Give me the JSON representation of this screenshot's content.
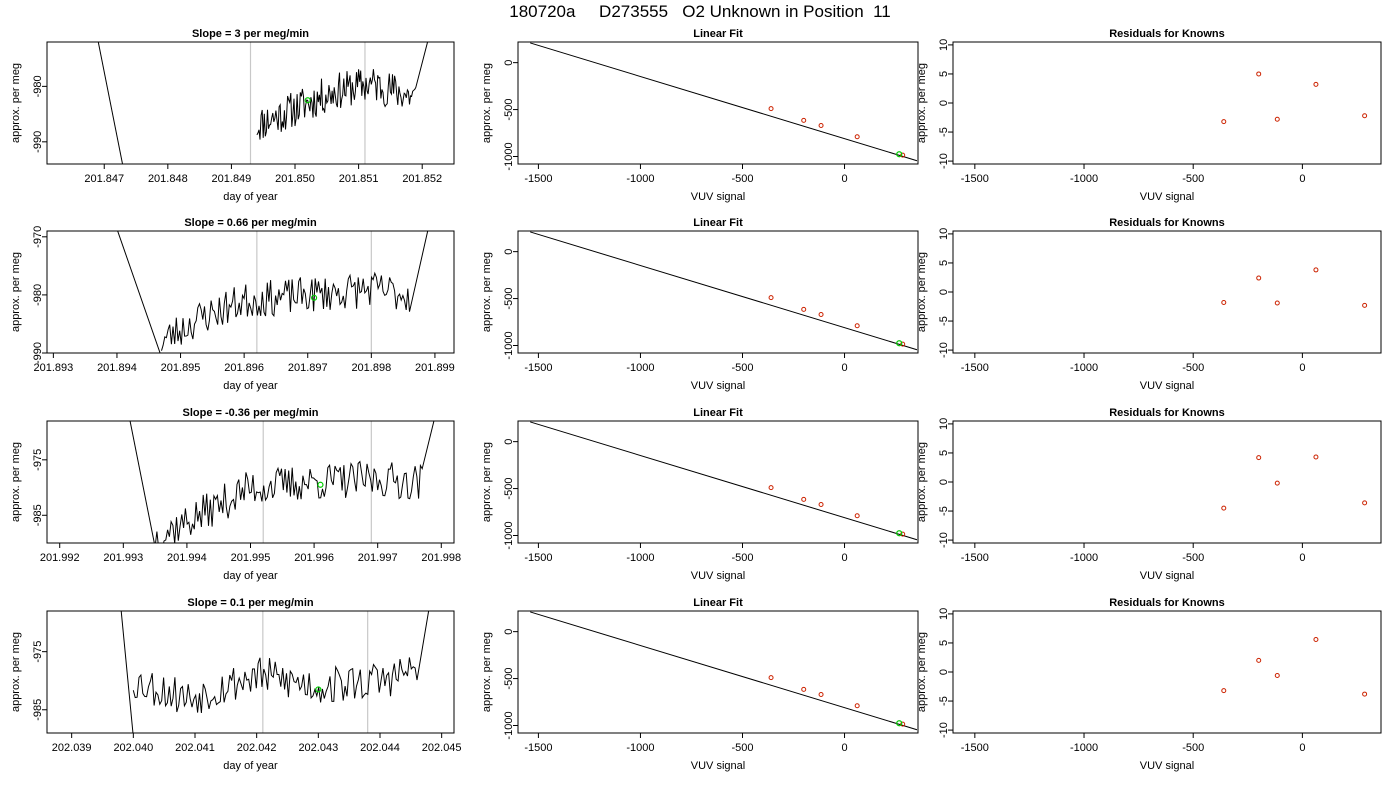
{
  "figure": {
    "suptitle": "180720a     D273555   O2 Unknown in Position  11"
  },
  "colors": {
    "trace": "#000000",
    "guide_line": "#c8c8c8",
    "unknown_marker": "#00cc00",
    "known_marker": "#cc2200",
    "fit_line": "#000000"
  },
  "chart_data": [
    {
      "type": "line",
      "title": "Slope =  3  per meg/min",
      "xlabel": "day of year",
      "ylabel": "approx. per meg",
      "xticks": [
        "201.847",
        "201.848",
        "201.849",
        "201.850",
        "201.851",
        "201.852"
      ],
      "xtick_values": [
        201.847,
        201.848,
        201.849,
        201.85,
        201.851,
        201.852
      ],
      "yticks": [
        "-990",
        "-980"
      ],
      "ytick_values": [
        -990,
        -980
      ],
      "xlim": [
        201.8461,
        201.8525
      ],
      "ylim": [
        -994,
        -972
      ],
      "vlines": [
        201.8493,
        201.8511
      ],
      "trace": {
        "x_start": 201.8494,
        "x_end": 201.8519,
        "noise": 1.6,
        "seed": 11,
        "anchors": [
          [
            201.8494,
            -987
          ],
          [
            201.85,
            -984
          ],
          [
            201.8506,
            -981
          ],
          [
            201.8512,
            -979.5
          ],
          [
            201.8519,
            -982
          ]
        ],
        "drop_x": [
          201.8469,
          201.8473
        ],
        "rise_end": 201.8521
      },
      "unknown_point": [
        201.8502,
        -982.5
      ]
    },
    {
      "type": "scatter",
      "title": "Linear Fit",
      "xlabel": "VUV signal",
      "ylabel": "approx. per meg",
      "xticks": [
        "-1500",
        "-1000",
        "-500",
        "0"
      ],
      "xtick_values": [
        -1500,
        -1000,
        -500,
        0
      ],
      "yticks": [
        "-1000",
        "-500",
        "0"
      ],
      "ytick_values": [
        -1000,
        -500,
        0
      ],
      "xlim": [
        -1600,
        360
      ],
      "ylim": [
        -1080,
        220
      ],
      "fit_line": [
        [
          -1540,
          210
        ],
        [
          355,
          -1045
        ]
      ],
      "knowns": [
        [
          -360,
          -490
        ],
        [
          -200,
          -615
        ],
        [
          -115,
          -670
        ],
        [
          62,
          -790
        ],
        [
          285,
          -985
        ]
      ],
      "unknown": [
        268,
        -976
      ]
    },
    {
      "type": "scatter",
      "title": "Residuals for Knowns",
      "xlabel": "VUV signal",
      "ylabel": "approx. per meg",
      "xticks": [
        "-1500",
        "-1000",
        "-500",
        "0"
      ],
      "xtick_values": [
        -1500,
        -1000,
        -500,
        0
      ],
      "yticks": [
        "-10",
        "-5",
        "0",
        "5",
        "10"
      ],
      "ytick_values": [
        -10,
        -5,
        0,
        5,
        10
      ],
      "xlim": [
        -1600,
        360
      ],
      "ylim": [
        -10.5,
        10.5
      ],
      "points": [
        [
          -360,
          -3.2
        ],
        [
          -200,
          5.0
        ],
        [
          -115,
          -2.8
        ],
        [
          62,
          3.2
        ],
        [
          285,
          -2.2
        ]
      ]
    },
    {
      "type": "line",
      "title": "Slope =  0.66  per meg/min",
      "xlabel": "day of year",
      "ylabel": "approx. per meg",
      "xticks": [
        "201.893",
        "201.894",
        "201.895",
        "201.896",
        "201.897",
        "201.898",
        "201.899"
      ],
      "xtick_values": [
        201.893,
        201.894,
        201.895,
        201.896,
        201.897,
        201.898,
        201.899
      ],
      "yticks": [
        "-990",
        "-980",
        "-970"
      ],
      "ytick_values": [
        -990,
        -980,
        -970
      ],
      "xlim": [
        201.8929,
        201.8993
      ],
      "ylim": [
        -990,
        -969
      ],
      "vlines": [
        201.8962,
        201.898
      ],
      "trace": {
        "x_start": 201.8947,
        "x_end": 201.8986,
        "noise": 1.5,
        "seed": 23,
        "anchors": [
          [
            201.8947,
            -988
          ],
          [
            201.8953,
            -984
          ],
          [
            201.896,
            -981
          ],
          [
            201.897,
            -980
          ],
          [
            201.898,
            -979
          ],
          [
            201.8986,
            -980
          ]
        ],
        "drop_x": [
          201.894,
          201.8947
        ],
        "rise_end": 201.8989
      },
      "unknown_point": [
        201.8971,
        -980.5
      ]
    },
    {
      "type": "scatter",
      "title": "Linear Fit",
      "xlabel": "VUV signal",
      "ylabel": "approx. per meg",
      "xticks": [
        "-1500",
        "-1000",
        "-500",
        "0"
      ],
      "xtick_values": [
        -1500,
        -1000,
        -500,
        0
      ],
      "yticks": [
        "-1000",
        "-500",
        "0"
      ],
      "ytick_values": [
        -1000,
        -500,
        0
      ],
      "xlim": [
        -1600,
        360
      ],
      "ylim": [
        -1080,
        220
      ],
      "fit_line": [
        [
          -1540,
          210
        ],
        [
          355,
          -1045
        ]
      ],
      "knowns": [
        [
          -360,
          -490
        ],
        [
          -200,
          -615
        ],
        [
          -115,
          -670
        ],
        [
          62,
          -790
        ],
        [
          285,
          -985
        ]
      ],
      "unknown": [
        268,
        -976
      ]
    },
    {
      "type": "scatter",
      "title": "Residuals for Knowns",
      "xlabel": "VUV signal",
      "ylabel": "approx. per meg",
      "xticks": [
        "-1500",
        "-1000",
        "-500",
        "0"
      ],
      "xtick_values": [
        -1500,
        -1000,
        -500,
        0
      ],
      "yticks": [
        "-10",
        "-5",
        "0",
        "5",
        "10"
      ],
      "ytick_values": [
        -10,
        -5,
        0,
        5,
        10
      ],
      "xlim": [
        -1600,
        360
      ],
      "ylim": [
        -10.5,
        10.5
      ],
      "points": [
        [
          -360,
          -1.8
        ],
        [
          -200,
          2.4
        ],
        [
          -115,
          -1.9
        ],
        [
          62,
          3.8
        ],
        [
          285,
          -2.3
        ]
      ]
    },
    {
      "type": "line",
      "title": "Slope =  -0.36  per meg/min",
      "xlabel": "day of year",
      "ylabel": "approx. per meg",
      "xticks": [
        "201.992",
        "201.993",
        "201.994",
        "201.995",
        "201.996",
        "201.997",
        "201.998"
      ],
      "xtick_values": [
        201.992,
        201.993,
        201.994,
        201.995,
        201.996,
        201.997,
        201.998
      ],
      "yticks": [
        "-985",
        "-975"
      ],
      "ytick_values": [
        -985,
        -975
      ],
      "xlim": [
        201.9918,
        201.9982
      ],
      "ylim": [
        -990,
        -968
      ],
      "vlines": [
        201.9952,
        201.9969
      ],
      "trace": {
        "x_start": 201.9935,
        "x_end": 201.9977,
        "noise": 1.6,
        "seed": 37,
        "anchors": [
          [
            201.9935,
            -989
          ],
          [
            201.9942,
            -985
          ],
          [
            201.995,
            -980
          ],
          [
            201.996,
            -979
          ],
          [
            201.997,
            -978.5
          ],
          [
            201.9977,
            -979
          ]
        ],
        "drop_x": [
          201.9931,
          201.9935
        ],
        "rise_end": 201.9979
      },
      "unknown_point": [
        201.9961,
        -979.5
      ]
    },
    {
      "type": "scatter",
      "title": "Linear Fit",
      "xlabel": "VUV signal",
      "ylabel": "approx. per meg",
      "xticks": [
        "-1500",
        "-1000",
        "-500",
        "0"
      ],
      "xtick_values": [
        -1500,
        -1000,
        -500,
        0
      ],
      "yticks": [
        "-1000",
        "-500",
        "0"
      ],
      "ytick_values": [
        -1000,
        -500,
        0
      ],
      "xlim": [
        -1600,
        360
      ],
      "ylim": [
        -1080,
        220
      ],
      "fit_line": [
        [
          -1540,
          210
        ],
        [
          355,
          -1045
        ]
      ],
      "knowns": [
        [
          -360,
          -490
        ],
        [
          -200,
          -615
        ],
        [
          -115,
          -670
        ],
        [
          62,
          -790
        ],
        [
          285,
          -985
        ]
      ],
      "unknown": [
        268,
        -976
      ]
    },
    {
      "type": "scatter",
      "title": "Residuals for Knowns",
      "xlabel": "VUV signal",
      "ylabel": "approx. per meg",
      "xticks": [
        "-1500",
        "-1000",
        "-500",
        "0"
      ],
      "xtick_values": [
        -1500,
        -1000,
        -500,
        0
      ],
      "yticks": [
        "-10",
        "-5",
        "0",
        "5",
        "10"
      ],
      "ytick_values": [
        -10,
        -5,
        0,
        5,
        10
      ],
      "xlim": [
        -1600,
        360
      ],
      "ylim": [
        -10.5,
        10.5
      ],
      "points": [
        [
          -360,
          -4.5
        ],
        [
          -200,
          4.2
        ],
        [
          -115,
          -0.2
        ],
        [
          62,
          4.3
        ],
        [
          285,
          -3.6
        ]
      ]
    },
    {
      "type": "line",
      "title": "Slope =  0.1  per meg/min",
      "xlabel": "day of year",
      "ylabel": "approx. per meg",
      "xticks": [
        "202.039",
        "202.040",
        "202.041",
        "202.042",
        "202.043",
        "202.044",
        "202.045"
      ],
      "xtick_values": [
        202.039,
        202.04,
        202.041,
        202.042,
        202.043,
        202.044,
        202.045
      ],
      "yticks": [
        "-985",
        "-975"
      ],
      "ytick_values": [
        -985,
        -975
      ],
      "xlim": [
        202.0386,
        202.0452
      ],
      "ylim": [
        -989,
        -968
      ],
      "vlines": [
        202.0421,
        202.0438
      ],
      "trace": {
        "x_start": 202.04,
        "x_end": 202.0446,
        "noise": 1.6,
        "seed": 53,
        "anchors": [
          [
            202.04,
            -980
          ],
          [
            202.0409,
            -983
          ],
          [
            202.042,
            -979
          ],
          [
            202.043,
            -981
          ],
          [
            202.044,
            -980
          ],
          [
            202.0446,
            -978
          ]
        ],
        "drop_x": [
          202.0398,
          202.04
        ],
        "rise_end": 202.0448
      },
      "unknown_point": [
        202.043,
        -981.5
      ]
    },
    {
      "type": "scatter",
      "title": "Linear Fit",
      "xlabel": "VUV signal",
      "ylabel": "approx. per meg",
      "xticks": [
        "-1500",
        "-1000",
        "-500",
        "0"
      ],
      "xtick_values": [
        -1500,
        -1000,
        -500,
        0
      ],
      "yticks": [
        "-1000",
        "-500",
        "0"
      ],
      "ytick_values": [
        -1000,
        -500,
        0
      ],
      "xlim": [
        -1600,
        360
      ],
      "ylim": [
        -1080,
        220
      ],
      "fit_line": [
        [
          -1540,
          210
        ],
        [
          355,
          -1045
        ]
      ],
      "knowns": [
        [
          -360,
          -490
        ],
        [
          -200,
          -615
        ],
        [
          -115,
          -670
        ],
        [
          62,
          -790
        ],
        [
          285,
          -985
        ]
      ],
      "unknown": [
        268,
        -976
      ]
    },
    {
      "type": "scatter",
      "title": "Residuals for Knowns",
      "xlabel": "VUV signal",
      "ylabel": "approx. per meg",
      "xticks": [
        "-1500",
        "-1000",
        "-500",
        "0"
      ],
      "xtick_values": [
        -1500,
        -1000,
        -500,
        0
      ],
      "yticks": [
        "-10",
        "-5",
        "0",
        "5",
        "10"
      ],
      "ytick_values": [
        -10,
        -5,
        0,
        5,
        10
      ],
      "xlim": [
        -1600,
        360
      ],
      "ylim": [
        -10.5,
        10.5
      ],
      "points": [
        [
          -360,
          -3.2
        ],
        [
          -200,
          2.0
        ],
        [
          -115,
          -0.6
        ],
        [
          62,
          5.6
        ],
        [
          285,
          -3.8
        ]
      ]
    }
  ]
}
